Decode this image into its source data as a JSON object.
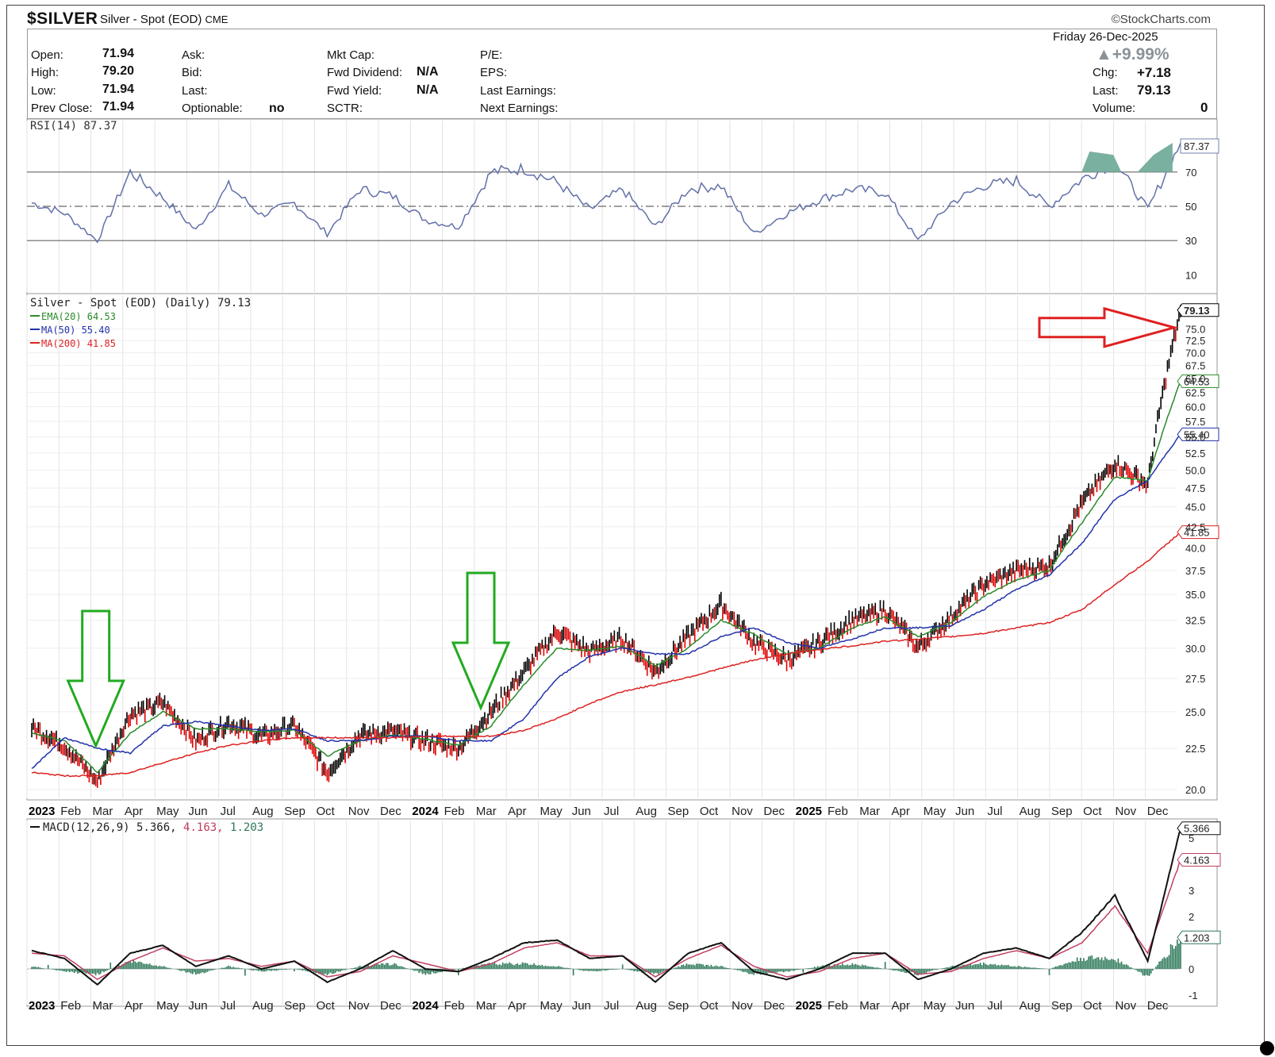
{
  "header": {
    "symbol": "$SILVER",
    "description": "Silver - Spot (EOD)",
    "exchange": "CME",
    "brand": "©StockCharts.com"
  },
  "quote": {
    "date": "Friday  26-Dec-2025",
    "pct_change": "+9.99%",
    "open_label": "Open:",
    "open": "71.94",
    "high_label": "High:",
    "high": "79.20",
    "low_label": "Low:",
    "low": "71.94",
    "prev_close_label": "Prev Close:",
    "prev_close": "71.94",
    "ask_label": "Ask:",
    "bid_label": "Bid:",
    "last_label_mid": "Last:",
    "optionable_label": "Optionable:",
    "optionable": "no",
    "mktcap_label": "Mkt Cap:",
    "fwd_div_label": "Fwd Dividend:",
    "fwd_div": "N/A",
    "fwd_yield_label": "Fwd Yield:",
    "fwd_yield": "N/A",
    "sctr_label": "SCTR:",
    "pe_label": "P/E:",
    "eps_label": "EPS:",
    "last_earn_label": "Last Earnings:",
    "next_earn_label": "Next Earnings:",
    "chg_label": "Chg:",
    "chg": "+7.18",
    "last_label": "Last:",
    "last": "79.13",
    "volume_label": "Volume:",
    "volume": "0"
  },
  "colors": {
    "price": "#000000",
    "price_down": "#e00000",
    "ema20": "#2a8a2a",
    "ma50": "#2233aa",
    "ma200": "#dd2222",
    "rsi": "#6270a8",
    "rsi_fill": "#7ab0a0",
    "macd_signal": "#c04060",
    "macd_hist": "#2f7a5a",
    "arrow_green": "#22aa22",
    "arrow_red": "#e02020"
  },
  "axis_months": [
    {
      "label": "2023",
      "bold": true
    },
    {
      "label": "Feb"
    },
    {
      "label": "Mar"
    },
    {
      "label": "Apr"
    },
    {
      "label": "May"
    },
    {
      "label": "Jun"
    },
    {
      "label": "Jul"
    },
    {
      "label": "Aug"
    },
    {
      "label": "Sep"
    },
    {
      "label": "Oct"
    },
    {
      "label": "Nov"
    },
    {
      "label": "Dec"
    },
    {
      "label": "2024",
      "bold": true
    },
    {
      "label": "Feb"
    },
    {
      "label": "Mar"
    },
    {
      "label": "Apr"
    },
    {
      "label": "May"
    },
    {
      "label": "Jun"
    },
    {
      "label": "Jul"
    },
    {
      "label": "Aug"
    },
    {
      "label": "Sep"
    },
    {
      "label": "Oct"
    },
    {
      "label": "Nov"
    },
    {
      "label": "Dec"
    },
    {
      "label": "2025",
      "bold": true
    },
    {
      "label": "Feb"
    },
    {
      "label": "Mar"
    },
    {
      "label": "Apr"
    },
    {
      "label": "May"
    },
    {
      "label": "Jun"
    },
    {
      "label": "Jul"
    },
    {
      "label": "Aug"
    },
    {
      "label": "Sep"
    },
    {
      "label": "Oct"
    },
    {
      "label": "Nov"
    },
    {
      "label": "Dec"
    }
  ],
  "chart_data": [
    {
      "type": "line",
      "panel": "RSI",
      "title": "RSI(14) 87.37",
      "ylim": [
        0,
        100
      ],
      "yticks": [
        "10",
        "30",
        "50",
        "70"
      ],
      "reference_lines": [
        30,
        50,
        70
      ],
      "last_value": "87.37",
      "x": [
        "2023-01",
        "2023-02",
        "2023-03",
        "2023-04",
        "2023-05",
        "2023-06",
        "2023-07",
        "2023-08",
        "2023-09",
        "2023-10",
        "2023-11",
        "2023-12",
        "2024-01",
        "2024-02",
        "2024-03",
        "2024-04",
        "2024-05",
        "2024-06",
        "2024-07",
        "2024-08",
        "2024-09",
        "2024-10",
        "2024-11",
        "2024-12",
        "2025-01",
        "2025-02",
        "2025-03",
        "2025-04",
        "2025-05",
        "2025-06",
        "2025-07",
        "2025-08",
        "2025-09",
        "2025-10",
        "2025-11",
        "2025-12"
      ],
      "series": [
        {
          "values": [
            52,
            46,
            30,
            70,
            55,
            36,
            62,
            45,
            52,
            34,
            60,
            56,
            42,
            38,
            70,
            72,
            64,
            48,
            60,
            38,
            60,
            62,
            34,
            46,
            54,
            60,
            58,
            30,
            52,
            62,
            65,
            50,
            66,
            76,
            48,
            87
          ]
        }
      ]
    },
    {
      "type": "line",
      "panel": "price",
      "title": "Silver - Spot (EOD) (Daily) 79.13",
      "ylim": [
        19.5,
        80
      ],
      "scale": "log",
      "yticks": [
        "20.0",
        "22.5",
        "25.0",
        "27.5",
        "30.0",
        "32.5",
        "35.0",
        "37.5",
        "40.0",
        "42.5",
        "45.0",
        "47.5",
        "50.0",
        "52.5",
        "55.0",
        "57.5",
        "60.0",
        "62.5",
        "65.0",
        "67.5",
        "70.0",
        "72.5",
        "75.0"
      ],
      "x": [
        "2023-01",
        "2023-02",
        "2023-03",
        "2023-04",
        "2023-05",
        "2023-06",
        "2023-07",
        "2023-08",
        "2023-09",
        "2023-10",
        "2023-11",
        "2023-12",
        "2024-01",
        "2024-02",
        "2024-03",
        "2024-04",
        "2024-05",
        "2024-06",
        "2024-07",
        "2024-08",
        "2024-09",
        "2024-10",
        "2024-11",
        "2024-12",
        "2025-01",
        "2025-02",
        "2025-03",
        "2025-04",
        "2025-05",
        "2025-06",
        "2025-07",
        "2025-08",
        "2025-09",
        "2025-10",
        "2025-11",
        "2025-12"
      ],
      "series": [
        {
          "name": "Silver - Spot (EOD) (Daily) 79.13",
          "values": [
            23.9,
            22.7,
            20.4,
            24.8,
            25.6,
            23.0,
            24.2,
            23.3,
            24.0,
            21.0,
            23.4,
            23.6,
            23.0,
            22.5,
            25.0,
            28.0,
            31.5,
            29.7,
            30.8,
            28.0,
            31.0,
            34.0,
            30.5,
            29.0,
            30.5,
            32.5,
            33.5,
            30.0,
            32.8,
            36.0,
            37.5,
            38.0,
            45.5,
            51.0,
            48.0,
            79.13
          ]
        },
        {
          "name": "EMA(20) 64.53",
          "values": [
            23.5,
            23.0,
            21.0,
            23.5,
            25.0,
            23.8,
            23.8,
            23.6,
            23.7,
            22.0,
            23.0,
            23.4,
            23.1,
            22.7,
            24.0,
            27.0,
            30.0,
            29.8,
            30.2,
            28.5,
            30.0,
            32.5,
            31.2,
            29.5,
            30.0,
            31.8,
            32.8,
            31.0,
            32.3,
            34.8,
            36.5,
            37.5,
            43.0,
            49.0,
            48.5,
            64.53
          ]
        },
        {
          "name": "MA(50) 55.40",
          "values": [
            21.2,
            23.2,
            22.5,
            22.2,
            24.0,
            24.3,
            24.0,
            23.7,
            23.8,
            23.0,
            23.0,
            23.3,
            23.3,
            23.0,
            23.0,
            24.5,
            27.5,
            29.3,
            30.0,
            29.5,
            29.5,
            31.0,
            31.8,
            30.5,
            30.0,
            30.8,
            31.8,
            31.8,
            32.0,
            33.5,
            35.5,
            37.0,
            40.5,
            46.0,
            48.5,
            55.4
          ]
        },
        {
          "name": "MA(200) 41.85",
          "values": [
            21.0,
            20.8,
            20.8,
            21.0,
            21.6,
            22.2,
            22.7,
            23.0,
            23.2,
            23.2,
            23.2,
            23.2,
            23.3,
            23.3,
            23.3,
            23.7,
            24.5,
            25.6,
            26.5,
            27.0,
            27.6,
            28.3,
            29.0,
            29.5,
            29.9,
            30.2,
            30.6,
            30.8,
            31.0,
            31.3,
            31.8,
            32.3,
            33.5,
            36.0,
            38.5,
            41.85
          ]
        }
      ],
      "price_labels": {
        "last": "79.13",
        "ema20": "64.53",
        "ma50": "55.40",
        "ma200": "41.85"
      }
    },
    {
      "type": "line",
      "panel": "MACD",
      "title": "MACD(12,26,9) 5.366, 4.163, 1.203",
      "ylim": [
        -1.3,
        5.6
      ],
      "yticks": [
        "-1",
        "0",
        "2",
        "3",
        "5"
      ],
      "x": [
        "2023-01",
        "2023-02",
        "2023-03",
        "2023-04",
        "2023-05",
        "2023-06",
        "2023-07",
        "2023-08",
        "2023-09",
        "2023-10",
        "2023-11",
        "2023-12",
        "2024-01",
        "2024-02",
        "2024-03",
        "2024-04",
        "2024-05",
        "2024-06",
        "2024-07",
        "2024-08",
        "2024-09",
        "2024-10",
        "2024-11",
        "2024-12",
        "2025-01",
        "2025-02",
        "2025-03",
        "2025-04",
        "2025-05",
        "2025-06",
        "2025-07",
        "2025-08",
        "2025-09",
        "2025-10",
        "2025-11",
        "2025-12"
      ],
      "series": [
        {
          "name": "MACD",
          "values": [
            0.7,
            0.4,
            -0.6,
            0.6,
            0.9,
            0.1,
            0.5,
            0.0,
            0.3,
            -0.5,
            0.0,
            0.7,
            0.0,
            -0.1,
            0.4,
            1.0,
            1.1,
            0.4,
            0.5,
            -0.5,
            0.6,
            1.0,
            -0.1,
            -0.4,
            0.0,
            0.6,
            0.6,
            -0.4,
            0.0,
            0.6,
            0.8,
            0.4,
            1.4,
            2.8,
            0.3,
            5.366
          ]
        },
        {
          "name": "Signal",
          "values": [
            0.6,
            0.5,
            -0.4,
            0.3,
            0.8,
            0.3,
            0.4,
            0.1,
            0.3,
            -0.3,
            -0.1,
            0.5,
            0.2,
            -0.1,
            0.2,
            0.8,
            1.0,
            0.5,
            0.5,
            -0.3,
            0.4,
            0.9,
            0.1,
            -0.3,
            -0.1,
            0.4,
            0.6,
            -0.2,
            -0.1,
            0.4,
            0.7,
            0.4,
            1.0,
            2.4,
            0.6,
            4.163
          ]
        },
        {
          "name": "Histogram",
          "values": [
            0.1,
            -0.1,
            -0.2,
            0.3,
            0.1,
            -0.2,
            0.1,
            -0.1,
            0.0,
            -0.2,
            0.1,
            0.2,
            -0.2,
            0.0,
            0.2,
            0.2,
            0.1,
            -0.1,
            0.0,
            -0.2,
            0.2,
            0.1,
            -0.2,
            -0.1,
            0.1,
            0.2,
            0.0,
            -0.2,
            0.1,
            0.2,
            0.1,
            0.0,
            0.4,
            0.4,
            -0.3,
            1.203
          ]
        }
      ],
      "value_labels": {
        "macd": "5.366",
        "signal": "4.163",
        "hist": "1.203"
      }
    }
  ],
  "annotations": {
    "green_arrows": [
      {
        "x_month": "2023-03",
        "points_to": 22.3
      },
      {
        "x_month": "2024-03",
        "points_to": 24.2
      }
    ],
    "red_arrow": {
      "points_to": "79.13"
    }
  }
}
